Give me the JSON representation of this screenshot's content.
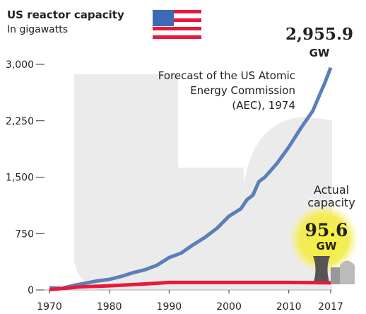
{
  "chart_data": {
    "type": "line",
    "title": "US reactor capacity",
    "subtitle": "In gigawatts",
    "xlim": [
      1970,
      2017
    ],
    "xticks": [
      1970,
      1980,
      1990,
      2000,
      2010,
      2017
    ],
    "ylim": [
      0,
      3000
    ],
    "yticks": [
      0,
      750,
      {
        "value": 1500,
        "label": "1,500"
      },
      {
        "value": 2250,
        "label": "2,250"
      },
      {
        "value": 3000,
        "label": "3,000"
      }
    ],
    "series": [
      {
        "name": [
          "Forecast of the US Atomic",
          "Energy Commission",
          "(AEC), 1974"
        ],
        "color": "#5b7fb9",
        "x": [
          1970,
          1972,
          1974,
          1976,
          1978,
          1980,
          1982,
          1984,
          1986,
          1988,
          1990,
          1992,
          1994,
          1996,
          1998,
          2000,
          2002,
          2003,
          2004,
          2005,
          2006,
          2008,
          2010,
          2012,
          2014,
          2016,
          2017
        ],
        "values": [
          30,
          20,
          60,
          90,
          120,
          140,
          180,
          230,
          270,
          330,
          430,
          490,
          600,
          700,
          820,
          980,
          1080,
          1200,
          1260,
          1440,
          1500,
          1680,
          1900,
          2150,
          2380,
          2750,
          2955.9
        ],
        "end_label": "2,955.9",
        "end_unit": "GW"
      },
      {
        "name": [
          "Actual",
          "capacity"
        ],
        "color": "#e8193c",
        "x": [
          1970,
          1975,
          1980,
          1985,
          1990,
          1995,
          2000,
          2005,
          2010,
          2017
        ],
        "values": [
          5,
          40,
          55,
          75,
          100,
          100,
          100,
          100,
          100,
          95.6
        ],
        "end_label": "95.6",
        "end_unit": "GW"
      }
    ]
  }
}
